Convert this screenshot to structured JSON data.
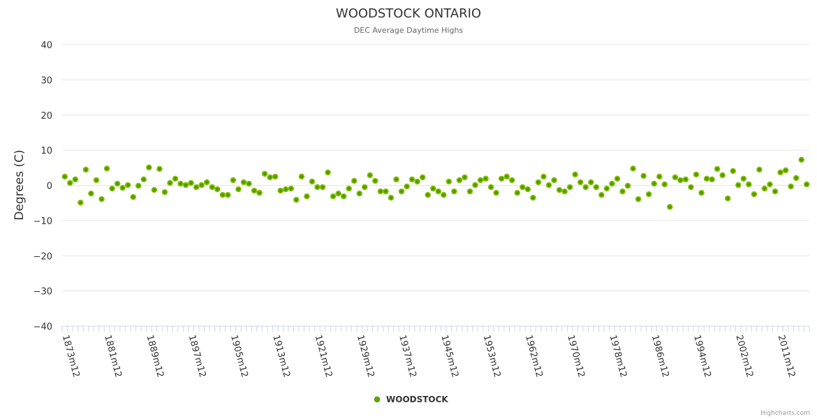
{
  "chart_data": {
    "type": "scatter",
    "title": "WOODSTOCK ONTARIO",
    "subtitle": "DEC Average Daytime Highs",
    "ylabel": "Degrees (C)",
    "xlabel": "",
    "ylim": [
      -40,
      40
    ],
    "yticks": [
      -40,
      -30,
      -20,
      -10,
      0,
      10,
      20,
      30,
      40
    ],
    "grid": true,
    "legend_position": "bottom-center",
    "credit": "Highcharts.com",
    "point_color": "#4a9a00",
    "point_fill": "#66aa00",
    "series": [
      {
        "name": "WOODSTOCK",
        "values": [
          2.5,
          0.7,
          1.7,
          -4.9,
          4.5,
          -2.3,
          1.5,
          -3.9,
          4.8,
          -0.9,
          0.5,
          -0.7,
          0.1,
          -3.3,
          -0.1,
          1.7,
          5.1,
          -1.3,
          4.7,
          -1.9,
          0.7,
          1.9,
          0.5,
          0.1,
          0.7,
          -0.5,
          0.1,
          0.9,
          -0.5,
          -1.1,
          -2.7,
          -2.7,
          1.5,
          -1.1,
          0.9,
          0.5,
          -1.5,
          -2.1,
          3.3,
          2.3,
          2.5,
          -1.5,
          -1.1,
          -0.9,
          -4.1,
          2.5,
          -3.1,
          1.1,
          -0.5,
          -0.5,
          3.7,
          -3.1,
          -2.3,
          -3.1,
          -0.9,
          1.3,
          -2.3,
          -0.5,
          2.9,
          1.3,
          -1.7,
          -1.7,
          -3.5,
          1.7,
          -1.7,
          -0.3,
          1.7,
          1.1,
          2.3,
          -2.7,
          -0.9,
          -1.7,
          -2.7,
          1.1,
          -1.7,
          1.5,
          2.3,
          -1.7,
          0.1,
          1.5,
          1.9,
          -0.5,
          -2.1,
          1.9,
          2.5,
          1.5,
          -2.1,
          -0.5,
          -1.1,
          -3.5,
          0.9,
          2.5,
          0.1,
          1.5,
          -1.3,
          -1.7,
          -0.5,
          3.1,
          0.9,
          -0.5,
          0.9,
          -0.5,
          -2.7,
          -0.9,
          0.5,
          1.9,
          -1.7,
          -0.1,
          4.8,
          -3.9,
          2.7,
          -2.5,
          0.5,
          2.5,
          0.3,
          -6.1,
          2.3,
          1.5,
          1.7,
          -0.5,
          3.1,
          -2.1,
          1.9,
          1.7,
          4.7,
          2.9,
          -3.7,
          4.1,
          0.1,
          1.9,
          0.3,
          -2.5,
          4.5,
          -0.9,
          0.3,
          -1.7,
          3.7,
          4.3,
          -0.3,
          2.1,
          7.3,
          0.3
        ]
      }
    ],
    "categories": [
      "1873m12",
      "1874m12",
      "1875m12",
      "1876m12",
      "1877m12",
      "1878m12",
      "1879m12",
      "1880m12",
      "1881m12",
      "1882m12",
      "1883m12",
      "1884m12",
      "1885m12",
      "1886m12",
      "1887m12",
      "1888m12",
      "1889m12",
      "1890m12",
      "1891m12",
      "1892m12",
      "1893m12",
      "1894m12",
      "1895m12",
      "1896m12",
      "1897m12",
      "1898m12",
      "1899m12",
      "1900m12",
      "1901m12",
      "1902m12",
      "1903m12",
      "1904m12",
      "1905m12",
      "1906m12",
      "1907m12",
      "1908m12",
      "1909m12",
      "1910m12",
      "1911m12",
      "1912m12",
      "1913m12",
      "1914m12",
      "1915m12",
      "1916m12",
      "1917m12",
      "1918m12",
      "1919m12",
      "1920m12",
      "1921m12",
      "1922m12",
      "1923m12",
      "1924m12",
      "1925m12",
      "1926m12",
      "1927m12",
      "1928m12",
      "1929m12",
      "1930m12",
      "1931m12",
      "1932m12",
      "1933m12",
      "1934m12",
      "1935m12",
      "1936m12",
      "1937m12",
      "1938m12",
      "1939m12",
      "1940m12",
      "1941m12",
      "1942m12",
      "1943m12",
      "1944m12",
      "1945m12",
      "1946m12",
      "1947m12",
      "1948m12",
      "1949m12",
      "1950m12",
      "1951m12",
      "1952m12",
      "1953m12",
      "1954m12",
      "1955m12",
      "1956m12",
      "1958m12",
      "1959m12",
      "1960m12",
      "1961m12",
      "1962m12",
      "1963m12",
      "1964m12",
      "1965m12",
      "1966m12",
      "1967m12",
      "1968m12",
      "1969m12",
      "1970m12",
      "1971m12",
      "1972m12",
      "1973m12",
      "1974m12",
      "1975m12",
      "1976m12",
      "1977m12",
      "1978m12",
      "1979m12",
      "1980m12",
      "1981m12",
      "1982m12",
      "1983m12",
      "1984m12",
      "1985m12",
      "1986m12",
      "1987m12",
      "1988m12",
      "1989m12",
      "1990m12",
      "1991m12",
      "1992m12",
      "1993m12",
      "1994m12",
      "1995m12",
      "1996m12",
      "1997m12",
      "1998m12",
      "1999m12",
      "2000m12",
      "2001m12",
      "2002m12",
      "2003m12",
      "2004m12",
      "2006m12",
      "2007m12",
      "2008m12",
      "2009m12",
      "2010m12",
      "2011m12",
      "2012m12",
      "2013m12",
      "2014m12",
      "2015m12",
      "2016m12"
    ],
    "label_every": 8
  }
}
